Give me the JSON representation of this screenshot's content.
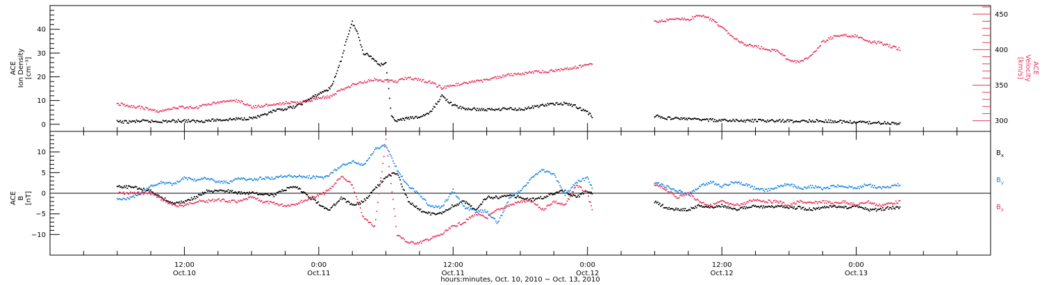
{
  "chart_data": [
    {
      "type": "scatter",
      "panel": "plasma",
      "ylabel_left": [
        "ACE",
        "Ion Density",
        "[cm⁻³]"
      ],
      "ylabel_right": [
        "ACE",
        "Velocity",
        "[km/s]"
      ],
      "yticks_left": [
        "0",
        "10",
        "20",
        "30",
        "40"
      ],
      "yticks_right": [
        "300",
        "350",
        "400",
        "450"
      ],
      "ylim_left": [
        -3,
        50
      ],
      "ylim_right": [
        285,
        462
      ],
      "colors": {
        "density": "#000000",
        "velocity": "#e8385e"
      },
      "series": [
        {
          "axis": "left",
          "color": "#000000",
          "x": [
            6,
            7,
            8,
            9,
            10,
            11,
            12,
            13,
            14,
            15,
            16,
            17,
            18,
            19,
            20,
            21,
            22,
            24.5,
            25,
            25.5,
            26,
            26.5,
            27,
            27.5,
            28,
            28.5,
            29,
            29.5,
            30,
            30.5,
            31,
            31.5,
            32,
            33,
            34,
            35,
            36,
            37,
            38,
            39,
            40,
            41,
            42,
            43,
            44,
            45,
            46,
            47,
            48,
            48.5,
            54,
            55,
            56,
            57,
            58,
            59,
            60,
            61,
            62,
            63,
            64,
            65,
            66,
            67,
            68,
            69,
            70,
            71,
            72,
            73,
            74,
            75,
            76
          ],
          "y": [
            1,
            1,
            1.3,
            1.2,
            1.2,
            1.3,
            1.5,
            1.2,
            1.5,
            1.8,
            2,
            2.3,
            2.6,
            3.5,
            5.5,
            6.5,
            7.5,
            14,
            15,
            20,
            27,
            36,
            43,
            38,
            30,
            29,
            27,
            25,
            26,
            3,
            1.5,
            2,
            2.5,
            3,
            5,
            12,
            8,
            6.5,
            6.3,
            6.1,
            6.4,
            6.6,
            6.3,
            7,
            8,
            8.5,
            8.8,
            7.5,
            5,
            3,
            3.6,
            2.6,
            2.5,
            2.2,
            2,
            1.8,
            1.5,
            1.6,
            1.4,
            1.5,
            1.4,
            1.5,
            1.3,
            1.2,
            1.5,
            1.3,
            1.2,
            1,
            0.8,
            0.7,
            0.6,
            0.5,
            0.4
          ]
        },
        {
          "axis": "right",
          "color": "#e8385e",
          "x": [
            6,
            7,
            8,
            9,
            10,
            11,
            12,
            13,
            14,
            15,
            16,
            17,
            18,
            19,
            20,
            21,
            22,
            24.5,
            25,
            26,
            27,
            28,
            29,
            30,
            31,
            32,
            33,
            34,
            35,
            36,
            37,
            38,
            39,
            40,
            41,
            42,
            43,
            44,
            45,
            46,
            47,
            48,
            48.5,
            54,
            55,
            56,
            57,
            58,
            59,
            60,
            61,
            62,
            63,
            64,
            65,
            66,
            67,
            68,
            69,
            70,
            71,
            72,
            73,
            74,
            75,
            76
          ],
          "y": [
            324,
            321,
            319,
            315,
            313,
            318,
            319,
            318,
            323,
            325,
            329,
            327,
            319,
            321,
            322,
            325,
            325,
            333,
            333,
            343,
            350,
            354,
            358,
            356,
            355,
            361,
            357,
            354,
            346,
            350,
            352,
            355,
            357,
            361,
            365,
            366,
            368,
            369,
            370,
            373,
            375,
            379,
            378,
            440,
            441,
            445,
            442,
            449,
            443,
            432,
            418,
            407,
            405,
            400,
            398,
            385,
            382,
            391,
            411,
            418,
            420,
            419,
            411,
            410,
            405,
            400
          ]
        }
      ]
    },
    {
      "type": "scatter",
      "panel": "magnetic-field",
      "ylabel_left": [
        "ACE",
        "B",
        "[nT]"
      ],
      "yticks_left": [
        "−10",
        "−5",
        "0",
        "5",
        "10"
      ],
      "ylim_left": [
        -15,
        15
      ],
      "legend": [
        "B",
        "B",
        "B"
      ],
      "legend_sub": [
        "x",
        "y",
        "z"
      ],
      "colors": {
        "bx": "#000000",
        "by": "#1e88e5",
        "bz": "#e8385e"
      },
      "series": [
        {
          "name": "Bx",
          "color": "#000000",
          "x": [
            6,
            7,
            8,
            9,
            10,
            11,
            12,
            13,
            14,
            15,
            16,
            17,
            18,
            19,
            20,
            21,
            22,
            24.5,
            25,
            26,
            27,
            28,
            29,
            30,
            31,
            32,
            33,
            34,
            35,
            36,
            37,
            38,
            39,
            40,
            41,
            42,
            43,
            44,
            45,
            46,
            47,
            48,
            48.5,
            54,
            55,
            56,
            57,
            58,
            59,
            60,
            61,
            62,
            63,
            64,
            65,
            66,
            67,
            68,
            69,
            70,
            71,
            72,
            73,
            74,
            75,
            76
          ],
          "y": [
            1.5,
            1.5,
            1.2,
            0.5,
            -1,
            -2.5,
            -2,
            -1,
            0.5,
            0.5,
            0.5,
            0,
            0,
            0,
            -0.5,
            1,
            1.5,
            -3.5,
            -4,
            -1,
            -3,
            -2,
            1,
            4,
            5,
            -2,
            -4,
            -5,
            -5,
            -3,
            -2,
            -4,
            -1,
            -1,
            -0.5,
            -1,
            -1.5,
            -1,
            0,
            0.5,
            -1,
            0.5,
            0,
            -2,
            -3.5,
            -4,
            -4,
            -3,
            -3.5,
            -3,
            -4,
            -3.5,
            -3,
            -3.5,
            -3,
            -3.5,
            -3.5,
            -4,
            -3.5,
            -3,
            -3.5,
            -3,
            -4,
            -4,
            -3.5,
            -3.5
          ]
        },
        {
          "name": "By",
          "color": "#1e88e5",
          "x": [
            6,
            7,
            8,
            9,
            10,
            11,
            12,
            13,
            14,
            15,
            16,
            17,
            18,
            19,
            20,
            21,
            22,
            24.5,
            25,
            26,
            27,
            28,
            29,
            30,
            31,
            32,
            33,
            34,
            35,
            36,
            37,
            38,
            39,
            40,
            41,
            42,
            43,
            44,
            45,
            46,
            47,
            48,
            48.5,
            54,
            55,
            56,
            57,
            58,
            59,
            60,
            61,
            62,
            63,
            64,
            65,
            66,
            67,
            68,
            69,
            70,
            71,
            72,
            73,
            74,
            75,
            76
          ],
          "y": [
            -2,
            -2,
            -1,
            1,
            2,
            1.5,
            3,
            2.5,
            3,
            2,
            2,
            3,
            2.5,
            3,
            3,
            3.5,
            3.5,
            3,
            4,
            6,
            7,
            6,
            10,
            11,
            5,
            1,
            -1,
            -4,
            -4,
            0,
            -4,
            -5,
            -5,
            -8,
            -2,
            0,
            3,
            5,
            4,
            -1,
            2,
            3,
            0,
            2,
            1,
            0,
            -1,
            1,
            2,
            1,
            2,
            1.5,
            0.5,
            0,
            1,
            1.5,
            0.5,
            1,
            0.5,
            1,
            1,
            0.5,
            1.5,
            0.5,
            1,
            1.5
          ]
        },
        {
          "name": "Bz",
          "color": "#e8385e",
          "x": [
            6,
            7,
            8,
            9,
            10,
            11,
            12,
            13,
            14,
            15,
            16,
            17,
            18,
            19,
            20,
            21,
            22,
            24.5,
            25,
            26,
            27,
            28,
            29,
            30,
            31,
            32,
            33,
            34,
            35,
            36,
            37,
            38,
            39,
            40,
            41,
            42,
            43,
            44,
            45,
            46,
            47,
            48,
            48.5,
            54,
            55,
            56,
            57,
            58,
            59,
            60,
            61,
            62,
            63,
            64,
            65,
            66,
            67,
            68,
            69,
            70,
            71,
            72,
            73,
            74,
            75,
            76
          ],
          "y": [
            0,
            0,
            0,
            0,
            -1.5,
            -3,
            -3,
            -2,
            -2,
            -1.5,
            -2,
            -2,
            -1,
            -2,
            -2.5,
            -3,
            -2.5,
            0,
            1,
            4,
            2,
            -6,
            -8,
            13,
            -10,
            -12,
            -12,
            -11,
            -10,
            -8,
            -7,
            -5,
            -6,
            -4,
            -3,
            -2,
            -2,
            -4,
            -2,
            -3,
            2,
            0,
            -5,
            2,
            1,
            -1,
            0,
            -2,
            -3,
            -2,
            -3,
            -2.5,
            -1.5,
            -2,
            -2,
            -3,
            -2,
            -2.5,
            -2,
            -2.5,
            -2,
            -3,
            -2,
            -3,
            -2.5,
            -2
          ]
        }
      ]
    }
  ],
  "xaxis": {
    "xlim": [
      0,
      84
    ],
    "tick_labels": [
      {
        "x": 12,
        "time": "12:00",
        "date": "Oct.10"
      },
      {
        "x": 24,
        "time": "0:00",
        "date": "Oct.11"
      },
      {
        "x": 36,
        "time": "12:00",
        "date": "Oct.11"
      },
      {
        "x": 48,
        "time": "0:00",
        "date": "Oct.12"
      },
      {
        "x": 60,
        "time": "12:00",
        "date": "Oct.12"
      },
      {
        "x": 72,
        "time": "0:00",
        "date": "Oct.13"
      }
    ],
    "xlabel": "hours:minutes, Oct. 10, 2010 − Oct. 13, 2010"
  }
}
